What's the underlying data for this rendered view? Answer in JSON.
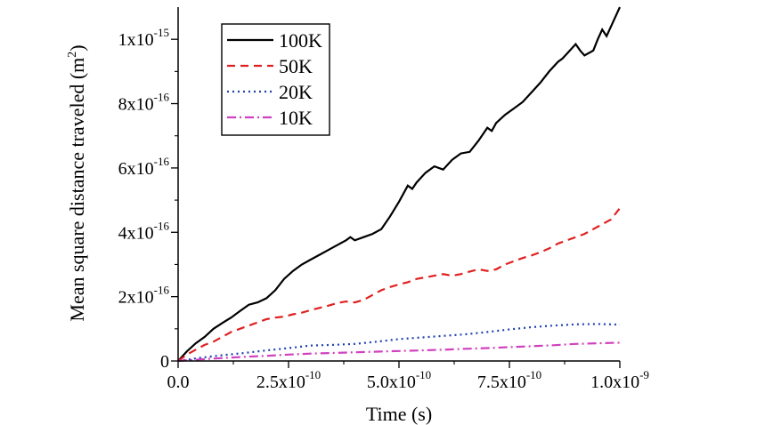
{
  "chart_data": {
    "type": "line",
    "title": "",
    "xlabel": "Time (s)",
    "ylabel": {
      "main": "Mean square distance traveled (m",
      "sup": "2",
      "close": ")"
    },
    "xlim": [
      0,
      1e-09
    ],
    "ylim": [
      0,
      1.1e-15
    ],
    "x_ticks": [
      {
        "value": 0,
        "mantissa": "0.0",
        "exp": ""
      },
      {
        "value": 2.5e-10,
        "mantissa": "2.5x10",
        "exp": "-10"
      },
      {
        "value": 5e-10,
        "mantissa": "5.0x10",
        "exp": "-10"
      },
      {
        "value": 7.5e-10,
        "mantissa": "7.5x10",
        "exp": "-10"
      },
      {
        "value": 1e-09,
        "mantissa": "1.0x10",
        "exp": "-9"
      }
    ],
    "y_ticks": [
      {
        "value": 0,
        "mantissa": "0",
        "exp": ""
      },
      {
        "value": 2e-16,
        "mantissa": "2x10",
        "exp": "-16"
      },
      {
        "value": 4e-16,
        "mantissa": "4x10",
        "exp": "-16"
      },
      {
        "value": 6e-16,
        "mantissa": "6x10",
        "exp": "-16"
      },
      {
        "value": 8e-16,
        "mantissa": "8x10",
        "exp": "-16"
      },
      {
        "value": 1e-15,
        "mantissa": "1x10",
        "exp": "-15"
      }
    ],
    "legend_position": "top-left",
    "grid": false,
    "series": [
      {
        "name": "100K",
        "color": "#000000",
        "dash": "solid",
        "x": [
          0,
          2e-11,
          4e-11,
          6e-11,
          8e-11,
          1e-10,
          1.2e-10,
          1.4e-10,
          1.6e-10,
          1.8e-10,
          2e-10,
          2.2e-10,
          2.4e-10,
          2.6e-10,
          2.8e-10,
          3e-10,
          3.2e-10,
          3.4e-10,
          3.6e-10,
          3.8e-10,
          3.9e-10,
          4e-10,
          4.2e-10,
          4.4e-10,
          4.6e-10,
          4.8e-10,
          5e-10,
          5.2e-10,
          5.3e-10,
          5.4e-10,
          5.6e-10,
          5.8e-10,
          6e-10,
          6.2e-10,
          6.4e-10,
          6.6e-10,
          6.8e-10,
          7e-10,
          7.1e-10,
          7.2e-10,
          7.4e-10,
          7.6e-10,
          7.8e-10,
          8e-10,
          8.2e-10,
          8.4e-10,
          8.6e-10,
          8.7e-10,
          8.8e-10,
          9e-10,
          9.1e-10,
          9.2e-10,
          9.4e-10,
          9.5e-10,
          9.6e-10,
          9.7e-10,
          9.8e-10,
          1e-09
        ],
        "y": [
          0,
          3e-17,
          5.5e-17,
          7.5e-17,
          1e-16,
          1.18e-16,
          1.35e-16,
          1.55e-16,
          1.75e-16,
          1.82e-16,
          1.95e-16,
          2.2e-16,
          2.55e-16,
          2.8e-16,
          3e-16,
          3.15e-16,
          3.3e-16,
          3.45e-16,
          3.6e-16,
          3.75e-16,
          3.85e-16,
          3.75e-16,
          3.85e-16,
          3.95e-16,
          4.1e-16,
          4.5e-16,
          4.95e-16,
          5.45e-16,
          5.35e-16,
          5.55e-16,
          5.85e-16,
          6.05e-16,
          5.95e-16,
          6.25e-16,
          6.45e-16,
          6.5e-16,
          6.85e-16,
          7.25e-16,
          7.15e-16,
          7.4e-16,
          7.65e-16,
          7.85e-16,
          8.05e-16,
          8.35e-16,
          8.65e-16,
          9e-16,
          9.3e-16,
          9.4e-16,
          9.55e-16,
          9.85e-16,
          9.65e-16,
          9.5e-16,
          9.65e-16,
          1e-15,
          1.03e-15,
          1.01e-15,
          1.04e-15,
          1.1e-15
        ]
      },
      {
        "name": "50K",
        "color": "#e02020",
        "dash": "dashed",
        "x": [
          0,
          2e-11,
          4e-11,
          6e-11,
          8e-11,
          1e-10,
          1.2e-10,
          1.4e-10,
          1.6e-10,
          1.8e-10,
          2e-10,
          2.2e-10,
          2.4e-10,
          2.6e-10,
          2.8e-10,
          3e-10,
          3.2e-10,
          3.4e-10,
          3.6e-10,
          3.8e-10,
          4e-10,
          4.2e-10,
          4.4e-10,
          4.6e-10,
          4.8e-10,
          5e-10,
          5.2e-10,
          5.4e-10,
          5.6e-10,
          5.8e-10,
          6e-10,
          6.2e-10,
          6.4e-10,
          6.6e-10,
          6.8e-10,
          7e-10,
          7.2e-10,
          7.4e-10,
          7.6e-10,
          7.8e-10,
          8e-10,
          8.2e-10,
          8.4e-10,
          8.6e-10,
          8.8e-10,
          9e-10,
          9.2e-10,
          9.4e-10,
          9.6e-10,
          9.8e-10,
          1e-09
        ],
        "y": [
          0,
          2e-17,
          3.5e-17,
          5e-17,
          6e-17,
          7.5e-17,
          9e-17,
          1e-16,
          1.1e-16,
          1.2e-16,
          1.3e-16,
          1.35e-16,
          1.38e-16,
          1.45e-16,
          1.5e-16,
          1.58e-16,
          1.65e-16,
          1.72e-16,
          1.8e-16,
          1.85e-16,
          1.82e-16,
          1.9e-16,
          2.05e-16,
          2.2e-16,
          2.3e-16,
          2.38e-16,
          2.45e-16,
          2.55e-16,
          2.6e-16,
          2.65e-16,
          2.7e-16,
          2.65e-16,
          2.7e-16,
          2.78e-16,
          2.85e-16,
          2.8e-16,
          2.85e-16,
          3e-16,
          3.1e-16,
          3.2e-16,
          3.28e-16,
          3.38e-16,
          3.5e-16,
          3.65e-16,
          3.75e-16,
          3.85e-16,
          3.95e-16,
          4.1e-16,
          4.25e-16,
          4.4e-16,
          4.75e-16
        ]
      },
      {
        "name": "20K",
        "color": "#1f3fb0",
        "dash": "dotted",
        "x": [
          0,
          5e-11,
          1e-10,
          1.5e-10,
          2e-10,
          2.5e-10,
          3e-10,
          3.5e-10,
          4e-10,
          4.5e-10,
          5e-10,
          5.5e-10,
          6e-10,
          6.5e-10,
          7e-10,
          7.5e-10,
          8e-10,
          8.5e-10,
          9e-10,
          9.5e-10,
          1e-09
        ],
        "y": [
          0,
          1e-17,
          1.8e-17,
          2.5e-17,
          3.3e-17,
          4e-17,
          4.8e-17,
          5e-17,
          5.3e-17,
          6e-17,
          6.8e-17,
          7.3e-17,
          7.8e-17,
          8.3e-17,
          9e-17,
          9.8e-17,
          1.05e-16,
          1.1e-16,
          1.14e-16,
          1.15e-16,
          1.13e-16
        ]
      },
      {
        "name": "10K",
        "color": "#d040c0",
        "dash": "dashdot",
        "x": [
          0,
          5e-11,
          1e-10,
          1.5e-10,
          2e-10,
          2.5e-10,
          3e-10,
          3.5e-10,
          4e-10,
          4.5e-10,
          5e-10,
          5.5e-10,
          6e-10,
          6.5e-10,
          7e-10,
          7.5e-10,
          8e-10,
          8.5e-10,
          9e-10,
          9.5e-10,
          1e-09
        ],
        "y": [
          0,
          5e-18,
          9e-18,
          1.3e-17,
          1.6e-17,
          2e-17,
          2.3e-17,
          2.5e-17,
          2.7e-17,
          2.9e-17,
          3.1e-17,
          3.3e-17,
          3.5e-17,
          3.8e-17,
          4e-17,
          4.3e-17,
          4.6e-17,
          4.9e-17,
          5.3e-17,
          5.5e-17,
          5.7e-17
        ]
      }
    ]
  }
}
